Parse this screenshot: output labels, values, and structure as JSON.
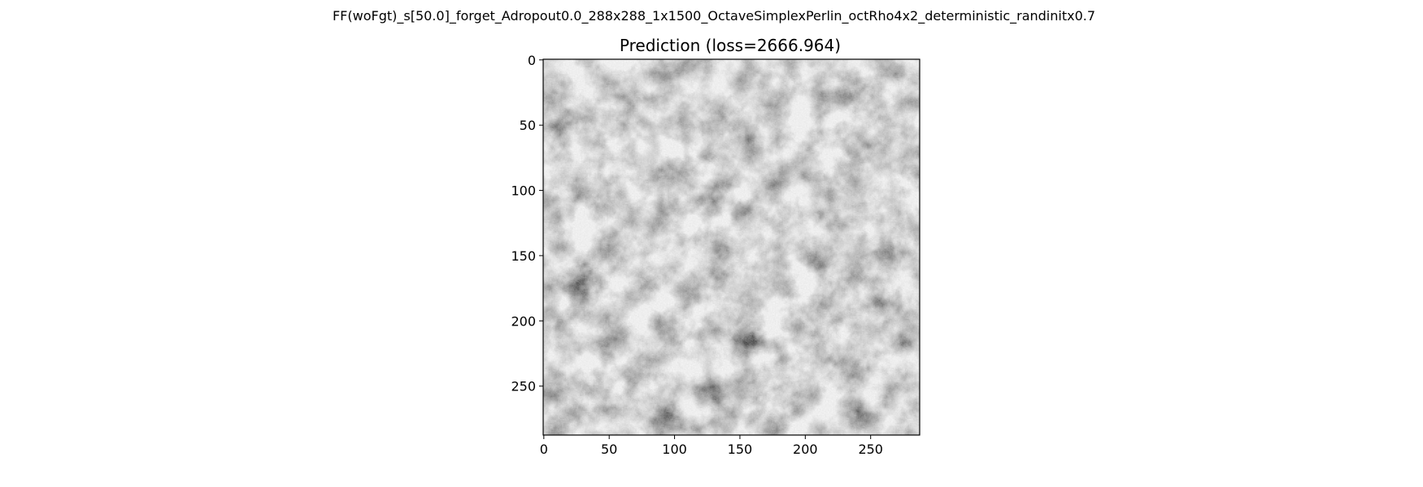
{
  "figure": {
    "suptitle": "FF(woFgt)_s[50.0]_forget_Adropout0.0_288x288_1x1500_OctaveSimplexPerlin_octRho4x2_deterministic_randinitx0.7"
  },
  "chart_data": {
    "type": "heatmap",
    "title": "Prediction (loss=2666.964)",
    "xlabel": "",
    "ylabel": "",
    "image_size": [
      288,
      288
    ],
    "xlim": [
      0,
      288
    ],
    "ylim": [
      288,
      0
    ],
    "xticks": [
      0,
      50,
      100,
      150,
      200,
      250
    ],
    "yticks": [
      0,
      50,
      100,
      150,
      200,
      250
    ],
    "colormap": "gray",
    "grid": false,
    "legend": "none"
  }
}
